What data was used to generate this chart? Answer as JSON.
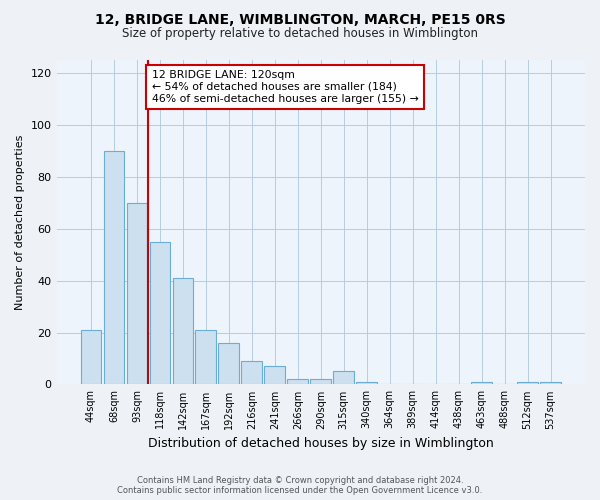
{
  "title": "12, BRIDGE LANE, WIMBLINGTON, MARCH, PE15 0RS",
  "subtitle": "Size of property relative to detached houses in Wimblington",
  "xlabel": "Distribution of detached houses by size in Wimblington",
  "ylabel": "Number of detached properties",
  "bar_labels": [
    "44sqm",
    "68sqm",
    "93sqm",
    "118sqm",
    "142sqm",
    "167sqm",
    "192sqm",
    "216sqm",
    "241sqm",
    "266sqm",
    "290sqm",
    "315sqm",
    "340sqm",
    "364sqm",
    "389sqm",
    "414sqm",
    "438sqm",
    "463sqm",
    "488sqm",
    "512sqm",
    "537sqm"
  ],
  "bar_values": [
    21,
    90,
    70,
    55,
    41,
    21,
    16,
    9,
    7,
    2,
    2,
    5,
    1,
    0,
    0,
    0,
    0,
    1,
    0,
    1,
    1
  ],
  "bar_color": "#cce0f0",
  "bar_edge_color": "#6aaed6",
  "vline_x": 2.5,
  "vline_color": "#cc0000",
  "annotation_box_text": "12 BRIDGE LANE: 120sqm\n← 54% of detached houses are smaller (184)\n46% of semi-detached houses are larger (155) →",
  "annotation_box_color": "#cc0000",
  "annotation_box_bg": "#ffffff",
  "ylim": [
    0,
    125
  ],
  "yticks": [
    0,
    20,
    40,
    60,
    80,
    100,
    120
  ],
  "footnote": "Contains HM Land Registry data © Crown copyright and database right 2024.\nContains public sector information licensed under the Open Government Licence v3.0.",
  "bg_color": "#eef2f7",
  "plot_bg_color": "#eef4fb",
  "grid_color": "#b8cce0"
}
